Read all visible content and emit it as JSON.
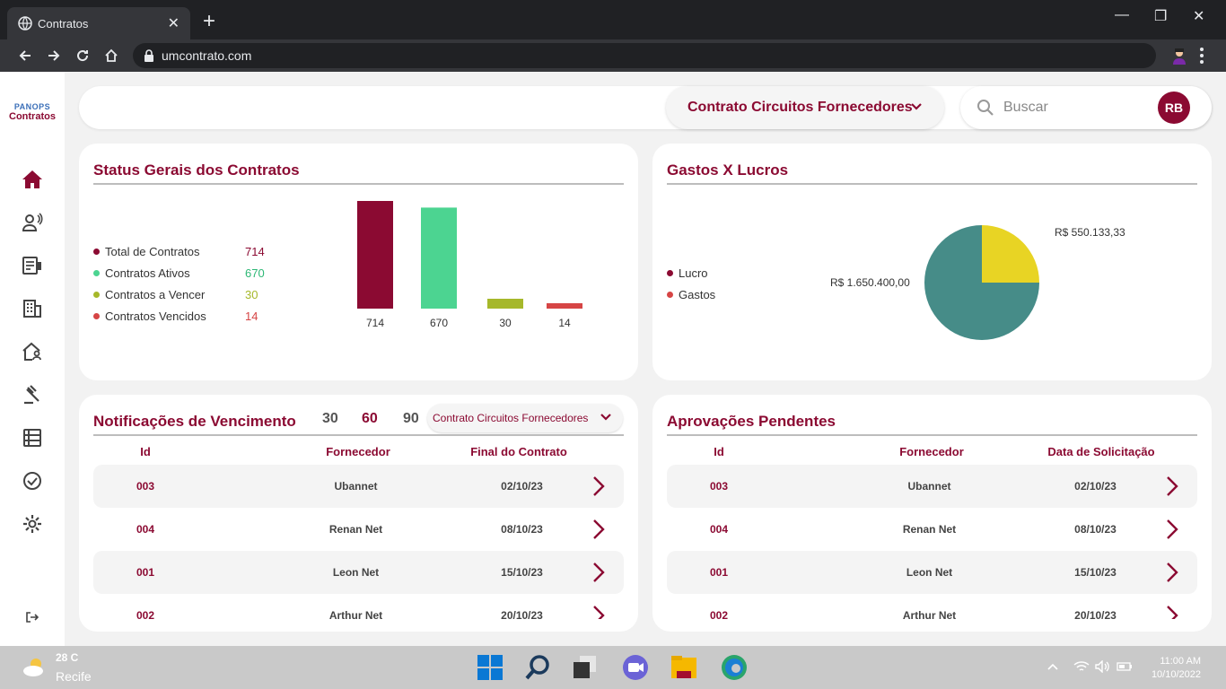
{
  "browser": {
    "tab_title": "Contratos",
    "url": "umcontrato.com"
  },
  "logo": {
    "brand": "PANOPS",
    "product": "Contratos"
  },
  "topbar": {
    "contract_select": "Contrato Circuitos Fornecedores",
    "search_placeholder": "Buscar",
    "avatar_initials": "RB"
  },
  "sidebar": {
    "items": [
      "home-icon",
      "users-icon",
      "contract-icon",
      "building-icon",
      "home-person-icon",
      "gavel-icon",
      "list-icon",
      "check-circle-icon",
      "gear-icon"
    ],
    "logout": "logout-icon"
  },
  "status_card": {
    "title": "Status Gerais dos Contratos",
    "legend": [
      {
        "label": "Total de Contratos",
        "value": "714",
        "color": "#8b0a32"
      },
      {
        "label": "Contratos Ativos",
        "value": "670",
        "color": "#4cd491"
      },
      {
        "label": "Contratos a Vencer",
        "value": "30",
        "color": "#a6b82a"
      },
      {
        "label": "Contratos Vencidos",
        "value": "14",
        "color": "#d64545"
      }
    ]
  },
  "gastos_card": {
    "title": "Gastos X Lucros",
    "legend": [
      {
        "label": "Lucro",
        "color": "#8b0a32"
      },
      {
        "label": "Gastos",
        "color": "#d64545"
      }
    ],
    "label_top": "R$ 550.133,33",
    "label_left": "R$ 1.650.400,00"
  },
  "chart_data": [
    {
      "type": "bar",
      "categories": [
        "Total de Contratos",
        "Contratos Ativos",
        "Contratos a Vencer",
        "Contratos Vencidos"
      ],
      "values": [
        714,
        670,
        30,
        14
      ],
      "colors": [
        "#8b0a32",
        "#4cd491",
        "#a6b82a",
        "#d64545"
      ],
      "data_labels": [
        "714",
        "670",
        "30",
        "14"
      ],
      "title": "",
      "ylim": [
        0,
        714
      ]
    },
    {
      "type": "pie",
      "slices": [
        {
          "label": "R$ 550.133,33",
          "value": 550133.33,
          "color": "#e8d424"
        },
        {
          "label": "R$ 1.650.400,00",
          "value": 1650400.0,
          "color": "#468c88"
        }
      ],
      "title": ""
    }
  ],
  "notif_card": {
    "title": "Notificações de Vencimento",
    "days": [
      "30",
      "60",
      "90"
    ],
    "selected_day": "60",
    "select_value": "Contrato Circuitos Fornecedores",
    "headers": [
      "Id",
      "Fornecedor",
      "Final do Contrato"
    ],
    "rows": [
      {
        "id": "003",
        "fornecedor": "Ubannet",
        "date": "02/10/23"
      },
      {
        "id": "004",
        "fornecedor": "Renan Net",
        "date": "08/10/23"
      },
      {
        "id": "001",
        "fornecedor": "Leon Net",
        "date": "15/10/23"
      },
      {
        "id": "002",
        "fornecedor": "Arthur Net",
        "date": "20/10/23"
      }
    ]
  },
  "aprov_card": {
    "title": "Aprovações Pendentes",
    "headers": [
      "Id",
      "Fornecedor",
      "Data de Solicitação"
    ],
    "rows": [
      {
        "id": "003",
        "fornecedor": "Ubannet",
        "date": "02/10/23"
      },
      {
        "id": "004",
        "fornecedor": "Renan Net",
        "date": "08/10/23"
      },
      {
        "id": "001",
        "fornecedor": "Leon Net",
        "date": "15/10/23"
      },
      {
        "id": "002",
        "fornecedor": "Arthur Net",
        "date": "20/10/23"
      }
    ]
  },
  "taskbar": {
    "temp": "28  C",
    "city": "Recife",
    "time": "11:00 AM",
    "date": "10/10/2022"
  },
  "colors": {
    "brand": "#8b0a32",
    "bg": "#f2f2f2"
  }
}
